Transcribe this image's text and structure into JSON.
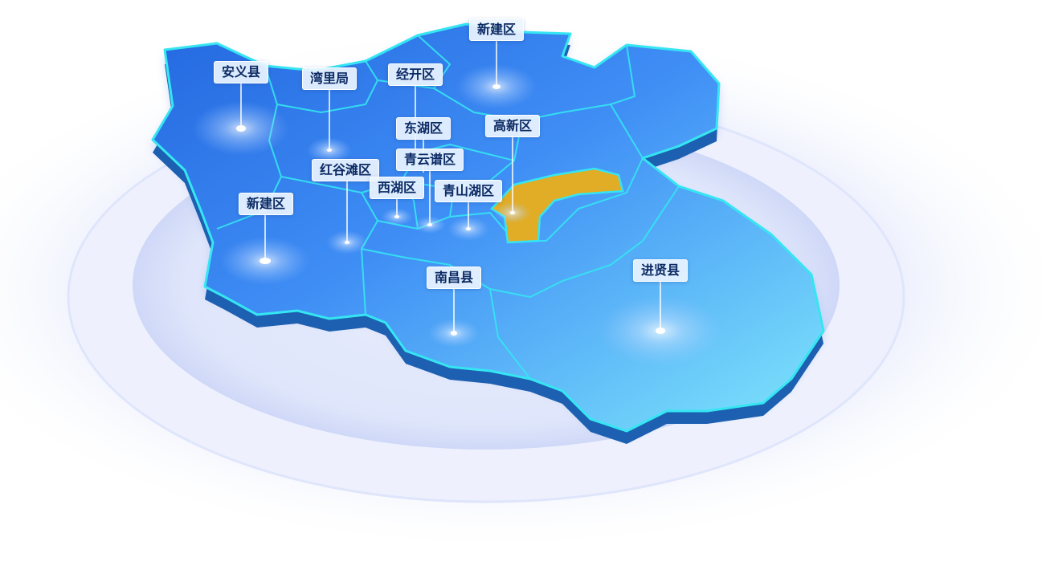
{
  "map": {
    "colors": {
      "region_fill": "#3f8ef5",
      "region_fill_dark": "#2a6fe3",
      "region_fill_light": "#6cc8fb",
      "region_edge": "#35e6f2",
      "region_side": "#1d5fb0",
      "highlight_fill": "#e2ad26",
      "halo": "#e8ecfb",
      "label_text": "#0b2a63"
    },
    "highlighted_region": "青山湖区",
    "regions": [
      {
        "id": "anyi",
        "name": "安义县"
      },
      {
        "id": "wanli",
        "name": "湾里局"
      },
      {
        "id": "jingkai",
        "name": "经开区"
      },
      {
        "id": "xinjian-north",
        "name": "新建区"
      },
      {
        "id": "donghu",
        "name": "东湖区"
      },
      {
        "id": "gaoxin",
        "name": "高新区"
      },
      {
        "id": "qingyunpu",
        "name": "青云谱区"
      },
      {
        "id": "honggutan",
        "name": "红谷滩区"
      },
      {
        "id": "xihu",
        "name": "西湖区"
      },
      {
        "id": "qingshanhu",
        "name": "青山湖区"
      },
      {
        "id": "xinjian-south",
        "name": "新建区"
      },
      {
        "id": "nanchang",
        "name": "南昌县"
      },
      {
        "id": "jinxian",
        "name": "进贤县"
      }
    ]
  }
}
